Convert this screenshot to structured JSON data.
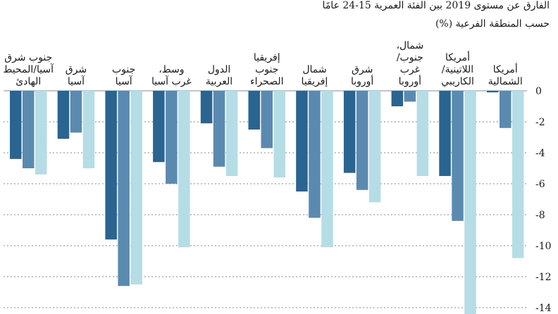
{
  "chart_data": {
    "type": "bar",
    "title": "الفارق عن مستوى 2019 بين الفئة العمرية 15-24 عامًا",
    "subtitle": "حسب المنطقة الفرعية (%)",
    "ylim": [
      -14,
      0
    ],
    "yticks": [
      0,
      -2,
      -4,
      -6,
      -8,
      -10,
      -12,
      -14
    ],
    "grid": true,
    "series_colors": [
      "#2a6491",
      "#5a8ab0",
      "#b5dde6"
    ],
    "categories": [
      {
        "lines": [
          "جنوب شرق",
          "آسيا/المحيط",
          "الهادئ"
        ],
        "values": [
          -4.4,
          -5.0,
          -5.4
        ]
      },
      {
        "lines": [
          "شرق",
          "آسيا"
        ],
        "values": [
          -3.1,
          -2.7,
          -5.0
        ]
      },
      {
        "lines": [
          "جنوب",
          "آسيا"
        ],
        "values": [
          -9.6,
          -12.6,
          -12.5
        ]
      },
      {
        "lines": [
          "وسط،",
          "غرب آسيا"
        ],
        "values": [
          -4.6,
          -6.0,
          -10.1
        ]
      },
      {
        "lines": [
          "الدول",
          "العربية"
        ],
        "values": [
          -2.1,
          -4.9,
          -5.5
        ]
      },
      {
        "lines": [
          "إفريقيا",
          "جنوب",
          "الصحراء"
        ],
        "values": [
          -2.5,
          -3.7,
          -5.6
        ]
      },
      {
        "lines": [
          "شمال",
          "إفريقيا"
        ],
        "values": [
          -6.5,
          -8.2,
          -10.1
        ]
      },
      {
        "lines": [
          "شرق",
          "أوروبا"
        ],
        "values": [
          -5.3,
          -6.4,
          -7.2
        ]
      },
      {
        "lines": [
          "شمال،",
          "جنوب/",
          "غرب",
          "أوروبا"
        ],
        "values": [
          -1.0,
          -0.7,
          -5.5
        ]
      },
      {
        "lines": [
          "أمريكا",
          "اللاتينية/",
          "الكاريبي"
        ],
        "values": [
          -5.5,
          -8.4,
          -14.8
        ]
      },
      {
        "lines": [
          "أمريكا",
          "الشمالية"
        ],
        "values": [
          -0.1,
          -2.4,
          -10.8
        ]
      }
    ]
  }
}
